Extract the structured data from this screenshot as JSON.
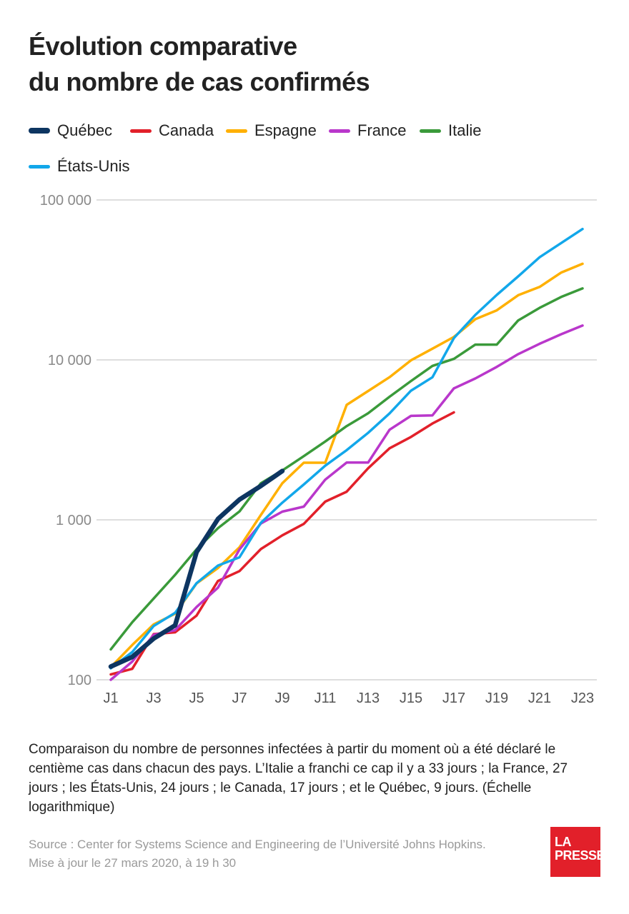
{
  "title": {
    "line1": "Évolution comparative",
    "line2": "du nombre de cas confirmés"
  },
  "caption": "Comparaison du nombre de personnes infectées à partir du moment où a été déclaré le centième cas dans chacun des pays. L’Italie a franchi ce cap il y a 33 jours ; la France, 27 jours ; les États-Unis, 24 jours ; le Canada, 17 jours ; et le Québec, 9 jours. (Échelle logarithmique)",
  "source": {
    "line1": "Source : Center for Systems Science and Engineering de l’Université Johns Hopkins.",
    "line2": "Mise à jour le 27 mars 2020, à 19 h 30"
  },
  "logo": {
    "line1": "LA",
    "line2": "PRESSE",
    "color": "#e2202a"
  },
  "chart_data": {
    "type": "line",
    "y_scale": "log",
    "ylim": [
      100,
      100000
    ],
    "yticks": [
      100,
      1000,
      10000,
      100000
    ],
    "ytick_labels": [
      "100",
      "1 000",
      "10 000",
      "100 000"
    ],
    "xlim": [
      1,
      23
    ],
    "xticks": [
      1,
      3,
      5,
      7,
      9,
      11,
      13,
      15,
      17,
      19,
      21,
      23
    ],
    "xtick_labels": [
      "J1",
      "J3",
      "J5",
      "J7",
      "J9",
      "J11",
      "J13",
      "J15",
      "J17",
      "J19",
      "J21",
      "J23"
    ],
    "grid": "horizontal",
    "legend_position": "top-left",
    "series": [
      {
        "name": "Québec",
        "color": "#0d3561",
        "emphasis": true,
        "x": [
          1,
          2,
          3,
          4,
          5,
          6,
          7,
          8,
          9
        ],
        "values": [
          121,
          139,
          181,
          219,
          628,
          1013,
          1339,
          1629,
          2021
        ]
      },
      {
        "name": "Canada",
        "color": "#e2202a",
        "x": [
          1,
          2,
          3,
          4,
          5,
          6,
          7,
          8,
          9,
          10,
          11,
          12,
          13,
          14,
          15,
          16,
          17
        ],
        "values": [
          108,
          117,
          193,
          198,
          252,
          415,
          478,
          657,
          800,
          943,
          1300,
          1500,
          2100,
          2800,
          3300,
          4000,
          4700
        ]
      },
      {
        "name": "Espagne",
        "color": "#ffb000",
        "x": [
          1,
          2,
          3,
          4,
          5,
          6,
          7,
          8,
          9,
          10,
          11,
          12,
          13,
          14,
          15,
          16,
          17,
          18,
          19,
          20,
          21,
          22,
          23
        ],
        "values": [
          120,
          165,
          222,
          259,
          400,
          500,
          673,
          1073,
          1695,
          2277,
          2277,
          5232,
          6391,
          7798,
          9942,
          11748,
          13910,
          17963,
          20410,
          25374,
          28603,
          35136,
          39885
        ]
      },
      {
        "name": "France",
        "color": "#b937cb",
        "x": [
          1,
          2,
          3,
          4,
          5,
          6,
          7,
          8,
          9,
          10,
          11,
          12,
          13,
          14,
          15,
          16,
          17,
          18,
          19,
          20,
          21,
          22,
          23
        ],
        "values": [
          100,
          130,
          191,
          204,
          285,
          377,
          653,
          949,
          1126,
          1209,
          1784,
          2281,
          2281,
          3661,
          4469,
          4499,
          6633,
          7652,
          9043,
          10871,
          12612,
          14459,
          16389
        ]
      },
      {
        "name": "Italie",
        "color": "#3a9a3a",
        "x": [
          1,
          2,
          3,
          4,
          5,
          6,
          7,
          8,
          9,
          10,
          11,
          12,
          13,
          14,
          15,
          16,
          17,
          18,
          19,
          20,
          21,
          22,
          23
        ],
        "values": [
          155,
          229,
          322,
          453,
          655,
          888,
          1128,
          1694,
          2036,
          2502,
          3089,
          3858,
          4636,
          5883,
          7375,
          9172,
          10149,
          12462,
          12462,
          17660,
          21157,
          24747,
          27980
        ]
      },
      {
        "name": "États-Unis",
        "color": "#12a7ea",
        "x": [
          1,
          2,
          3,
          4,
          5,
          6,
          7,
          8,
          9,
          10,
          11,
          12,
          13,
          14,
          15,
          16,
          17,
          18,
          19,
          20,
          21,
          22,
          23
        ],
        "values": [
          118,
          149,
          217,
          262,
          402,
          518,
          583,
          959,
          1281,
          1663,
          2179,
          2727,
          3499,
          4632,
          6421,
          7786,
          13680,
          19101,
          25493,
          33276,
          43847,
          53740,
          65778
        ]
      }
    ]
  }
}
